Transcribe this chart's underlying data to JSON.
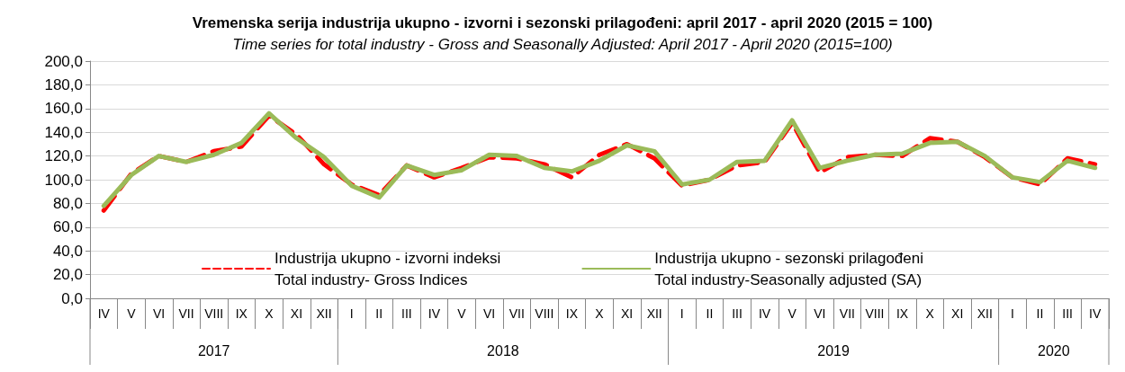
{
  "chart_data": {
    "type": "line",
    "title": "Vremenska serija industrija ukupno - izvorni i sezonski prilagođeni: april 2017 - april 2020 (2015 = 100)",
    "subtitle": "Time series for total industry - Gross and Seasonally Adjusted: April 2017 - April 2020 (2015=100)",
    "categories": [
      "IV",
      "V",
      "VI",
      "VII",
      "VIII",
      "IX",
      "X",
      "XI",
      "XII",
      "I",
      "II",
      "III",
      "IV",
      "V",
      "VI",
      "VII",
      "VIII",
      "IX",
      "X",
      "XI",
      "XII",
      "I",
      "II",
      "III",
      "IV",
      "V",
      "VI",
      "VII",
      "VIII",
      "IX",
      "X",
      "XI",
      "XII",
      "I",
      "II",
      "III",
      "IV"
    ],
    "series": [
      {
        "name": "Industrija ukupno - izvorni indeksi\nTotal industry- Gross Indices",
        "color": "#ff0000",
        "line_style": "dashed",
        "values": [
          74,
          105,
          120,
          115,
          124,
          128,
          154,
          138,
          113,
          96,
          87,
          112,
          102,
          110,
          119,
          118,
          113,
          102,
          121,
          130,
          118,
          95,
          100,
          112,
          115,
          148,
          106,
          119,
          121,
          120,
          135,
          132,
          119,
          102,
          96,
          118,
          113
        ]
      },
      {
        "name": "Industrija ukupno - sezonski prilagođeni\nTotal industry-Seasonally adjusted (SA)",
        "color": "#9bbb59",
        "line_style": "solid",
        "values": [
          78,
          104,
          120,
          115,
          121,
          131,
          156,
          135,
          119,
          95,
          85,
          112,
          104,
          108,
          121,
          120,
          110,
          107,
          116,
          129,
          124,
          96,
          100,
          115,
          116,
          150,
          110,
          116,
          121,
          122,
          131,
          132,
          120,
          102,
          98,
          116,
          110
        ]
      }
    ],
    "annotations": [
      "2017",
      "2018",
      "2019",
      "2020"
    ],
    "ylim": [
      0,
      200
    ],
    "yticks": [
      {
        "value": 0,
        "label": "0,0"
      },
      {
        "value": 20,
        "label": "20,0"
      },
      {
        "value": 40,
        "label": "40,0"
      },
      {
        "value": 60,
        "label": "60,0"
      },
      {
        "value": 80,
        "label": "80,0"
      },
      {
        "value": 100,
        "label": "100,0"
      },
      {
        "value": 120,
        "label": "120,0"
      },
      {
        "value": 140,
        "label": "140,0"
      },
      {
        "value": 160,
        "label": "160,0"
      },
      {
        "value": 180,
        "label": "180,0"
      },
      {
        "value": 200,
        "label": "200,0"
      }
    ],
    "grid": "y",
    "legend": "bottom",
    "marker": "none"
  }
}
